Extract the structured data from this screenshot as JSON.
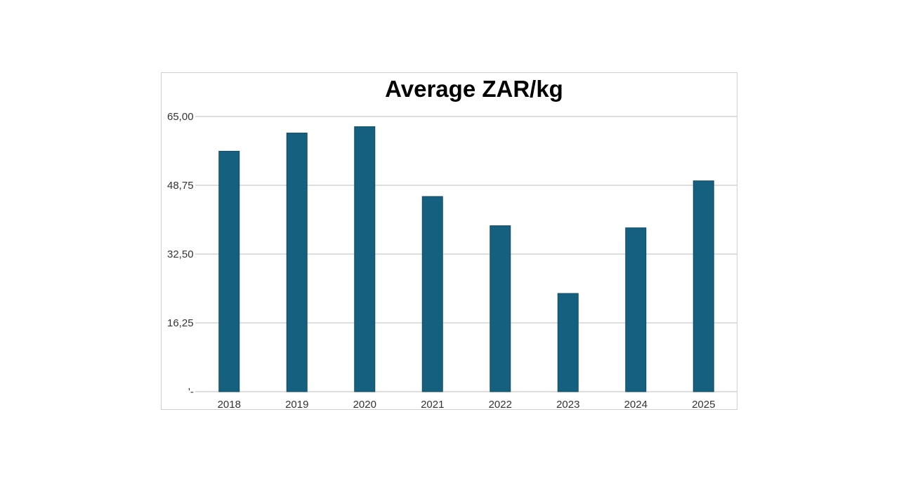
{
  "chart_data": {
    "type": "bar",
    "title": "Average ZAR/kg",
    "xlabel": "",
    "ylabel": "",
    "categories": [
      "2018",
      "2019",
      "2020",
      "2021",
      "2022",
      "2023",
      "2024",
      "2025"
    ],
    "values": [
      56.8,
      61.1,
      62.6,
      46.1,
      39.2,
      23.2,
      38.7,
      49.8
    ],
    "ylim": [
      0,
      65
    ],
    "yticks": [
      0,
      16.25,
      32.5,
      48.75,
      65
    ],
    "ytick_labels": [
      "'-",
      "16,25",
      "32,50",
      "48,75",
      "65,00"
    ],
    "grid": true,
    "legend": "none",
    "bar_color": "#16607f"
  }
}
